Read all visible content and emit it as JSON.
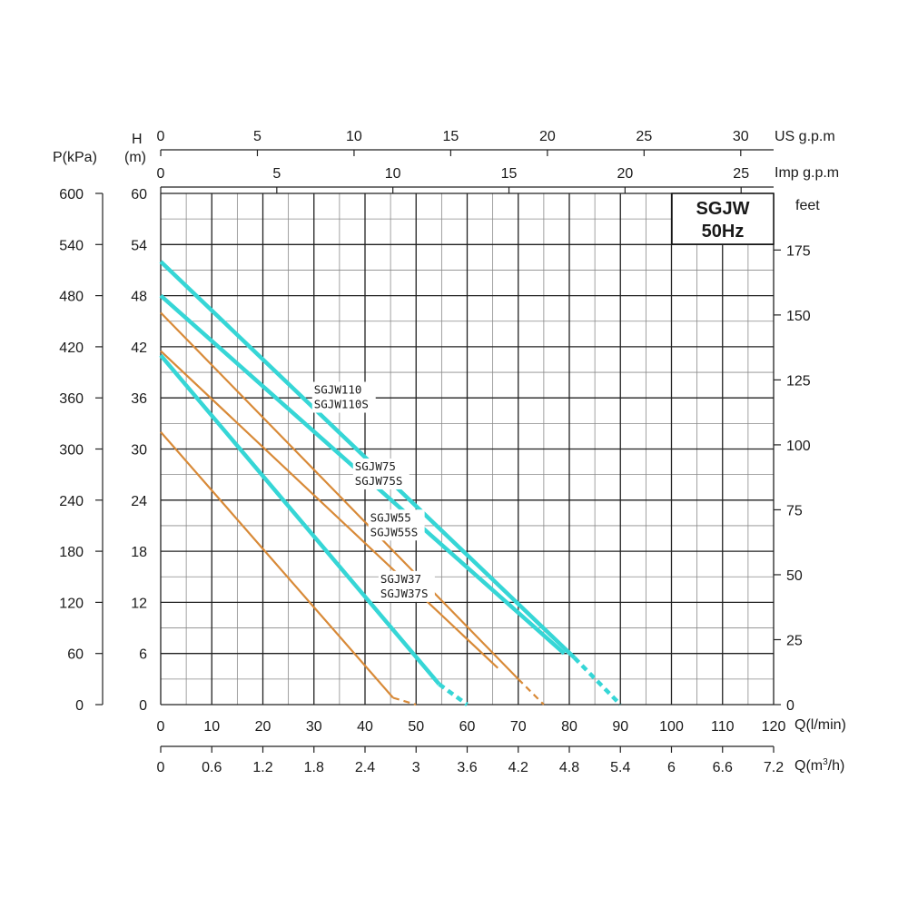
{
  "chart_data": {
    "type": "line",
    "title_lines": [
      "SGJW",
      "50Hz"
    ],
    "axes": {
      "x_lpm": {
        "label": "Q(l/min)",
        "range": [
          0,
          120
        ],
        "ticks": [
          "0",
          "10",
          "20",
          "30",
          "40",
          "50",
          "60",
          "70",
          "80",
          "90",
          "100",
          "110",
          "120"
        ]
      },
      "x_m3h": {
        "label": "Q(m³/h)",
        "label_base": "Q(m",
        "label_sup": "3",
        "label_tail": "/h)",
        "range": [
          0,
          7.2
        ],
        "ticks": [
          "0",
          "0.6",
          "1.2",
          "1.8",
          "2.4",
          "3",
          "3.6",
          "4.2",
          "4.8",
          "5.4",
          "6",
          "6.6",
          "7.2"
        ]
      },
      "x_usgpm": {
        "label": "US g.p.m",
        "range": [
          0,
          31.7
        ],
        "ticks": [
          "0",
          "5",
          "10",
          "15",
          "20",
          "25",
          "30"
        ]
      },
      "x_impgpm": {
        "label": "Imp g.p.m",
        "range": [
          0,
          26.4
        ],
        "ticks": [
          "0",
          "5",
          "10",
          "15",
          "20",
          "25"
        ]
      },
      "y_m": {
        "label_line1": "H",
        "label_line2": "(m)",
        "range": [
          0,
          60
        ],
        "ticks": [
          "0",
          "6",
          "12",
          "18",
          "24",
          "30",
          "36",
          "42",
          "48",
          "54",
          "60"
        ]
      },
      "y_kpa": {
        "label": "P(kPa)",
        "range": [
          0,
          600
        ],
        "ticks": [
          "0",
          "60",
          "120",
          "180",
          "240",
          "300",
          "360",
          "420",
          "480",
          "540",
          "600"
        ]
      },
      "y_feet": {
        "label": "feet",
        "range": [
          0,
          196.8
        ],
        "ticks": [
          "0",
          "25",
          "50",
          "75",
          "100",
          "125",
          "150",
          "175"
        ]
      }
    },
    "grid": true,
    "colors": {
      "SGJW37": "#d88a38",
      "SGJW55": "#36d6d6",
      "SGJW75": "#d88a38",
      "SGJW110": "#36d6d6"
    },
    "series": [
      {
        "name": "SGJW37",
        "labels": [
          "SGJW37",
          "SGJW37S"
        ],
        "x": [
          0,
          45.5
        ],
        "y": [
          32,
          0.8
        ],
        "dashed_x": [
          45.5,
          50
        ],
        "dashed_y": [
          0.8,
          0
        ]
      },
      {
        "name": "SGJW55",
        "labels": [
          "SGJW55",
          "SGJW55S"
        ],
        "x": [
          0,
          54.5
        ],
        "y": [
          41,
          2.4
        ],
        "dashed_x": [
          54.5,
          60
        ],
        "dashed_y": [
          2.4,
          0
        ]
      },
      {
        "name": "SGJW75",
        "labels": [
          "SGJW75",
          "SGJW75S"
        ],
        "x": [
          0,
          70
        ],
        "y": [
          46,
          3
        ],
        "dashed_x": [
          70,
          75
        ],
        "dashed_y": [
          3,
          0
        ]
      },
      {
        "name": "SGJW75 (S)",
        "x": [
          0,
          66
        ],
        "y": [
          41.5,
          4.3
        ]
      },
      {
        "name": "SGJW110",
        "labels": [
          "SGJW110",
          "SGJW110S"
        ],
        "x": [
          0,
          81
        ],
        "y": [
          52,
          5.5
        ],
        "dashed_x": [
          81,
          90
        ],
        "dashed_y": [
          5.5,
          0
        ]
      },
      {
        "name": "SGJW110 (S)",
        "x": [
          0,
          79
        ],
        "y": [
          48,
          6
        ]
      }
    ]
  }
}
